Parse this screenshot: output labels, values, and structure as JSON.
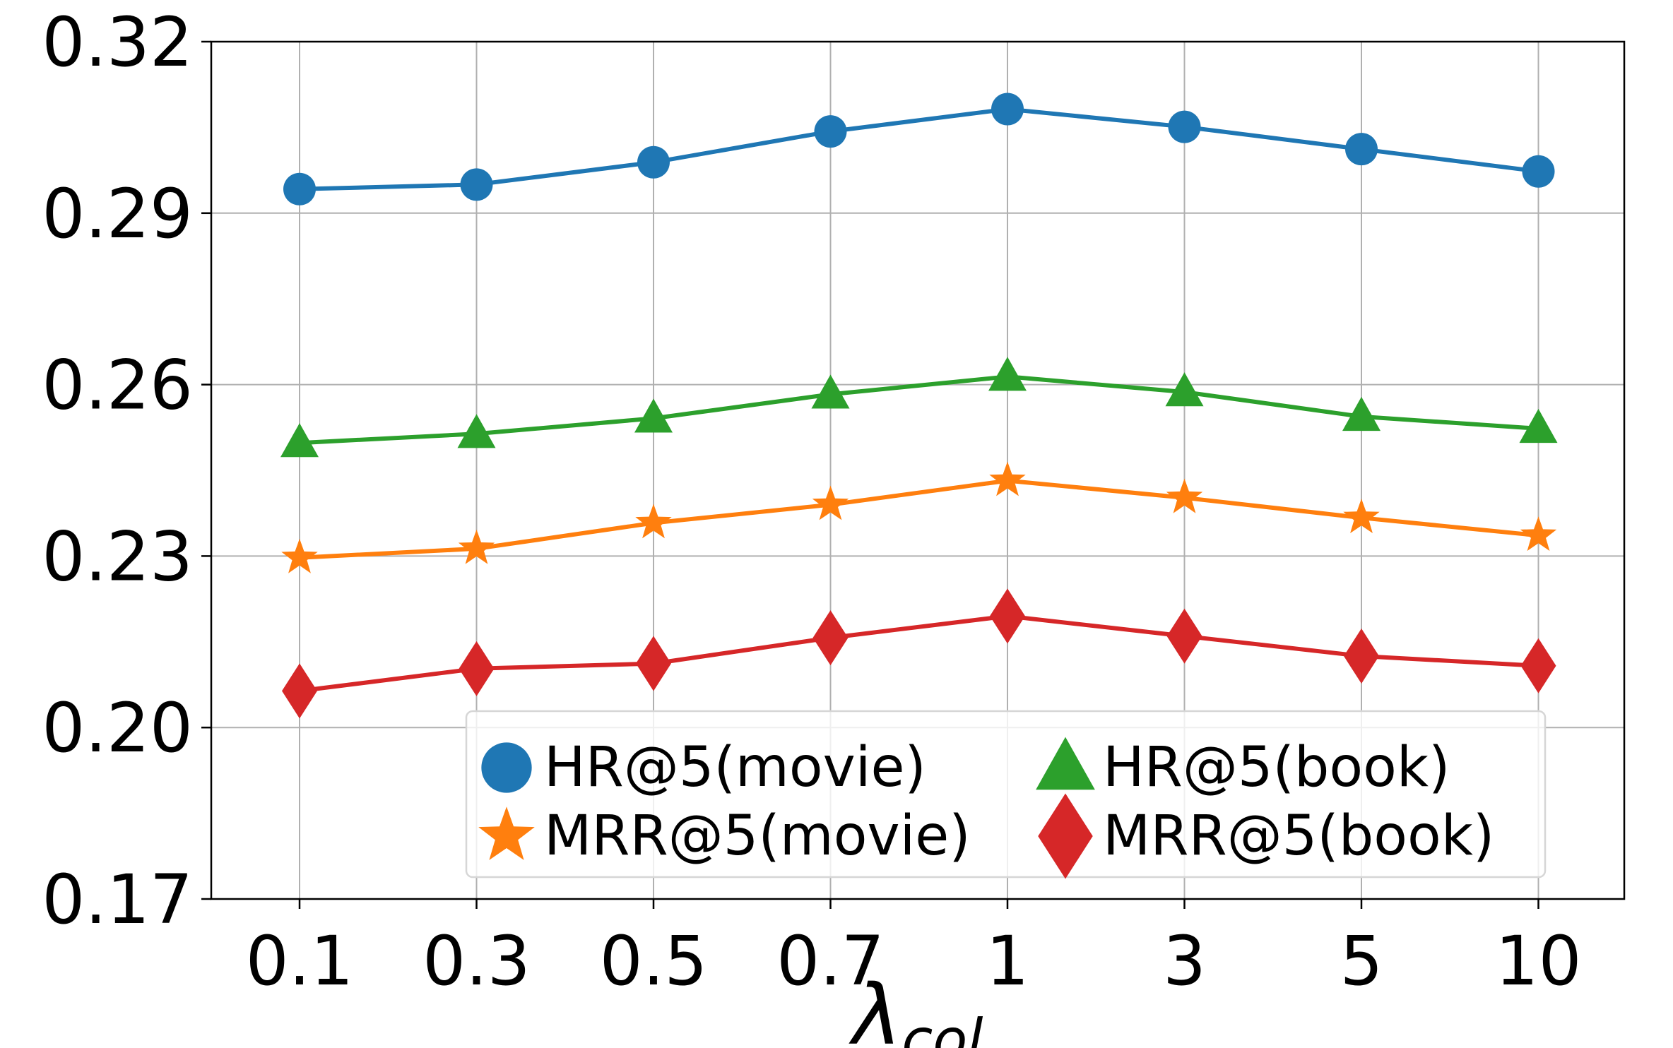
{
  "chart_data": {
    "type": "line",
    "title": "",
    "xlabel": "λ",
    "xlabel_subscript": "col",
    "ylabel": "",
    "categories": [
      "0.1",
      "0.3",
      "0.5",
      "0.7",
      "1",
      "3",
      "5",
      "10"
    ],
    "ylim": [
      0.17,
      0.32
    ],
    "yticks": [
      0.17,
      0.2,
      0.23,
      0.26,
      0.29,
      0.32
    ],
    "ytick_labels": [
      "0.17",
      "0.20",
      "0.23",
      "0.26",
      "0.29",
      "0.32"
    ],
    "grid": true,
    "legend_position": "lower-right",
    "series": [
      {
        "name": "HR@5(movie)",
        "marker": "circle",
        "color": "#1f77b4",
        "values": [
          0.2942,
          0.295,
          0.2989,
          0.3043,
          0.3082,
          0.3051,
          0.3012,
          0.2973
        ]
      },
      {
        "name": "MRR@5(movie)",
        "marker": "star",
        "color": "#ff7f0e",
        "values": [
          0.2297,
          0.2313,
          0.2358,
          0.239,
          0.2432,
          0.2402,
          0.2367,
          0.2336
        ]
      },
      {
        "name": "HR@5(book)",
        "marker": "triangle",
        "color": "#2ca02c",
        "values": [
          0.2498,
          0.2514,
          0.2541,
          0.2583,
          0.2614,
          0.2587,
          0.2544,
          0.2523
        ]
      },
      {
        "name": "MRR@5(book)",
        "marker": "diamond",
        "color": "#d62728",
        "values": [
          0.2064,
          0.2103,
          0.2112,
          0.2157,
          0.2195,
          0.216,
          0.2125,
          0.2108
        ]
      }
    ]
  }
}
